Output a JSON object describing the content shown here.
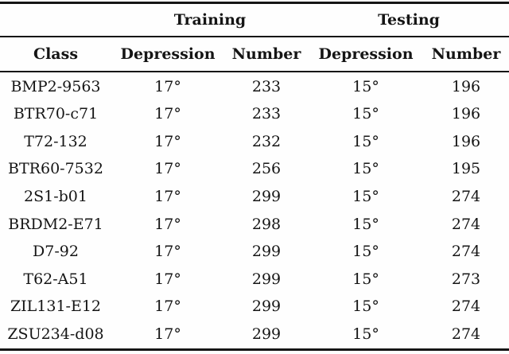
{
  "table": {
    "group_headers": {
      "training": "Training",
      "testing": "Testing"
    },
    "columns": [
      "Class",
      "Depression",
      "Number",
      "Depression",
      "Number"
    ],
    "row_keys": [
      "class",
      "train_depression",
      "train_number",
      "test_depression",
      "test_number"
    ],
    "rows": [
      {
        "class": "BMP2-9563",
        "train_depression": "17°",
        "train_number": "233",
        "test_depression": "15°",
        "test_number": "196"
      },
      {
        "class": "BTR70-c71",
        "train_depression": "17°",
        "train_number": "233",
        "test_depression": "15°",
        "test_number": "196"
      },
      {
        "class": "T72-132",
        "train_depression": "17°",
        "train_number": "232",
        "test_depression": "15°",
        "test_number": "196"
      },
      {
        "class": "BTR60-7532",
        "train_depression": "17°",
        "train_number": "256",
        "test_depression": "15°",
        "test_number": "195"
      },
      {
        "class": "2S1-b01",
        "train_depression": "17°",
        "train_number": "299",
        "test_depression": "15°",
        "test_number": "274"
      },
      {
        "class": "BRDM2-E71",
        "train_depression": "17°",
        "train_number": "298",
        "test_depression": "15°",
        "test_number": "274"
      },
      {
        "class": "D7-92",
        "train_depression": "17°",
        "train_number": "299",
        "test_depression": "15°",
        "test_number": "274"
      },
      {
        "class": "T62-A51",
        "train_depression": "17°",
        "train_number": "299",
        "test_depression": "15°",
        "test_number": "273"
      },
      {
        "class": "ZIL131-E12",
        "train_depression": "17°",
        "train_number": "299",
        "test_depression": "15°",
        "test_number": "274"
      },
      {
        "class": "ZSU234-d08",
        "train_depression": "17°",
        "train_number": "299",
        "test_depression": "15°",
        "test_number": "274"
      }
    ]
  },
  "colors": {
    "text": "#151515",
    "rule": "#151515",
    "background": "#fefefe"
  }
}
